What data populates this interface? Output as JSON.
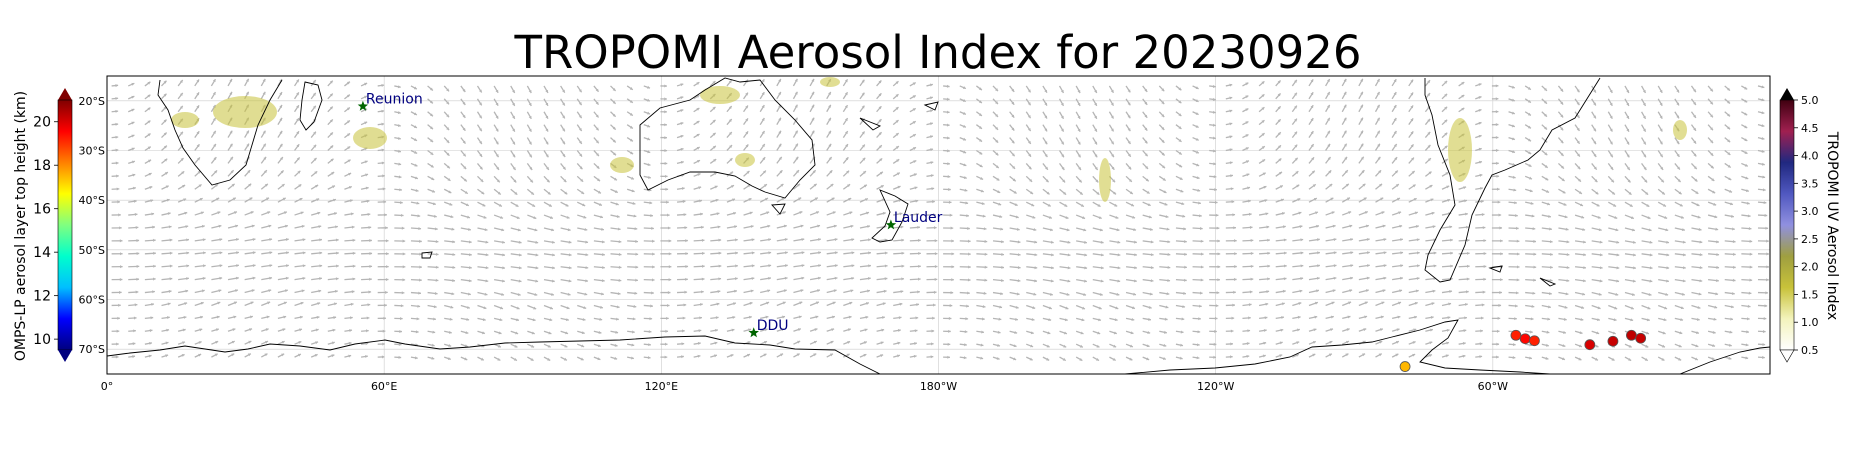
{
  "title": "TROPOMI Aerosol Index for 20230926",
  "map": {
    "lon_ticks": [
      "0°",
      "60°E",
      "120°E",
      "180°W",
      "120°W",
      "60°W"
    ],
    "lat_ticks": [
      "20°S",
      "30°S",
      "40°S",
      "50°S",
      "60°S",
      "70°S"
    ],
    "lon_range": [
      0,
      360
    ],
    "lat_range": [
      -75,
      -15
    ],
    "gridlines": true
  },
  "stations": [
    {
      "name": "Reunion",
      "lon": 55.4,
      "lat": -21.1
    },
    {
      "name": "Lauder",
      "lon": 169.7,
      "lat": -45.0
    },
    {
      "name": "DDU",
      "lon": 140.0,
      "lat": -66.7
    }
  ],
  "omps_points": [
    {
      "lon": 281,
      "lat": -73.5,
      "height": 17.5
    },
    {
      "lon": 305,
      "lat": -67.2,
      "height": 19.2
    },
    {
      "lon": 307,
      "lat": -67.9,
      "height": 19.5
    },
    {
      "lon": 309,
      "lat": -68.3,
      "height": 19.2
    },
    {
      "lon": 321,
      "lat": -69.1,
      "height": 20.0
    },
    {
      "lon": 326,
      "lat": -68.4,
      "height": 20.2
    },
    {
      "lon": 330,
      "lat": -67.2,
      "height": 20.3
    },
    {
      "lon": 332,
      "lat": -67.8,
      "height": 20.2
    }
  ],
  "left_colorbar": {
    "label": "OMPS-LP aerosol layer top height (km)",
    "ticks": [
      "10",
      "12",
      "14",
      "16",
      "18",
      "20"
    ],
    "range": [
      9.5,
      21
    ],
    "colors": [
      "#00007f",
      "#0000ff",
      "#00bfff",
      "#00ffcc",
      "#80ff80",
      "#ffff00",
      "#ff8000",
      "#ff0000",
      "#800000"
    ]
  },
  "right_colorbar": {
    "label": "TROPOMI UV Aerosol Index",
    "ticks": [
      "0.5",
      "1.0",
      "1.5",
      "2.0",
      "2.5",
      "3.0",
      "3.5",
      "4.0",
      "4.5",
      "5.0"
    ],
    "range": [
      0.5,
      5.0
    ],
    "colors": [
      "#ffffff",
      "#f3f3bc",
      "#c8c23a",
      "#9f9f40",
      "#9090e0",
      "#5058c0",
      "#202880",
      "#a02050",
      "#400010"
    ]
  },
  "colors": {
    "coast": "#000000",
    "wind_arrows": "#b5b5b5",
    "aerosol": "#c8c23a",
    "station_star": "#006400"
  }
}
